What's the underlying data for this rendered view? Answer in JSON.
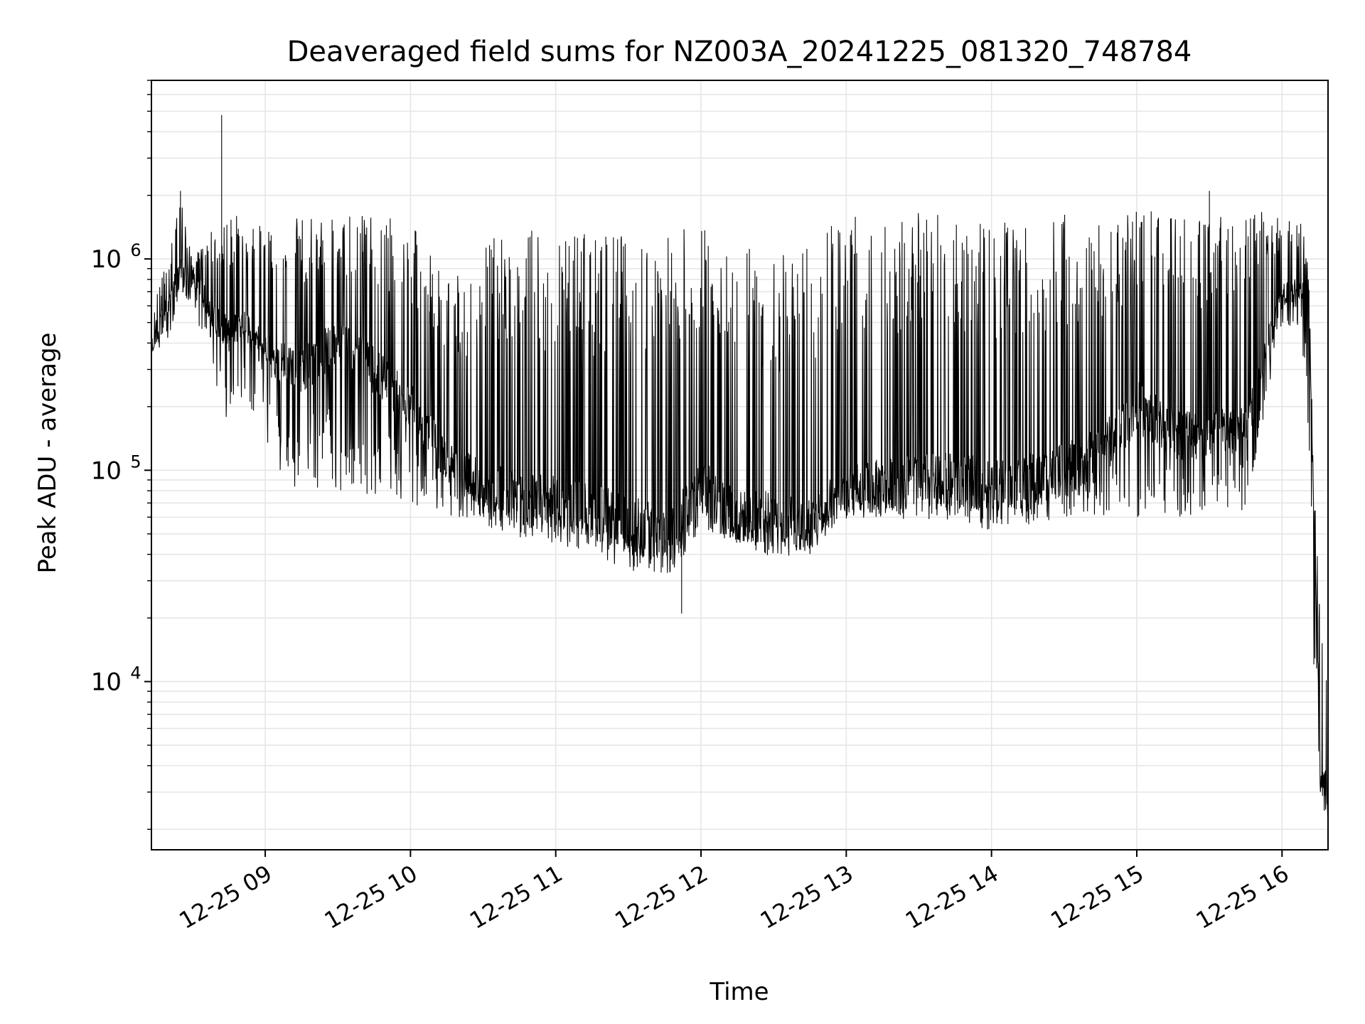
{
  "chart_data": {
    "type": "line",
    "title": "Deaveraged field sums for NZ003A_20241225_081320_748784",
    "xlabel": "Time",
    "ylabel": "Peak ADU - average",
    "y_scale": "log",
    "x_range": [
      "2024-12-25 08:13",
      "2024-12-25 16:19"
    ],
    "ylim": [
      1600,
      7000000
    ],
    "x_ticks": [
      {
        "value": "2024-12-25 09:00",
        "label": "12-25 09"
      },
      {
        "value": "2024-12-25 10:00",
        "label": "12-25 10"
      },
      {
        "value": "2024-12-25 11:00",
        "label": "12-25 11"
      },
      {
        "value": "2024-12-25 12:00",
        "label": "12-25 12"
      },
      {
        "value": "2024-12-25 13:00",
        "label": "12-25 13"
      },
      {
        "value": "2024-12-25 14:00",
        "label": "12-25 14"
      },
      {
        "value": "2024-12-25 15:00",
        "label": "12-25 15"
      },
      {
        "value": "2024-12-25 16:00",
        "label": "12-25 16"
      }
    ],
    "y_ticks": [
      {
        "value": 10000,
        "base": "10",
        "exp": "4"
      },
      {
        "value": 100000,
        "base": "10",
        "exp": "5"
      },
      {
        "value": 1000000,
        "base": "10",
        "exp": "6"
      }
    ],
    "grid": true,
    "line_color": "#000000",
    "series": [
      {
        "x": [
          "2024-12-25 08:13",
          "2024-12-25 08:20",
          "2024-12-25 08:25",
          "2024-12-25 08:30",
          "2024-12-25 08:35",
          "2024-12-25 08:40",
          "2024-12-25 08:45",
          "2024-12-25 08:50",
          "2024-12-25 09:00",
          "2024-12-25 09:15",
          "2024-12-25 09:30",
          "2024-12-25 09:45",
          "2024-12-25 10:00",
          "2024-12-25 10:15",
          "2024-12-25 10:30",
          "2024-12-25 10:45",
          "2024-12-25 11:00",
          "2024-12-25 11:15",
          "2024-12-25 11:30",
          "2024-12-25 11:45",
          "2024-12-25 12:00",
          "2024-12-25 12:15",
          "2024-12-25 12:30",
          "2024-12-25 12:45",
          "2024-12-25 13:00",
          "2024-12-25 13:15",
          "2024-12-25 13:30",
          "2024-12-25 13:45",
          "2024-12-25 14:00",
          "2024-12-25 14:15",
          "2024-12-25 14:30",
          "2024-12-25 14:45",
          "2024-12-25 15:00",
          "2024-12-25 15:15",
          "2024-12-25 15:30",
          "2024-12-25 15:45",
          "2024-12-25 16:00",
          "2024-12-25 16:08",
          "2024-12-25 16:11",
          "2024-12-25 16:13",
          "2024-12-25 16:16",
          "2024-12-25 16:19"
        ],
        "median": [
          400000,
          600000,
          900000,
          800000,
          650000,
          500000,
          450000,
          500000,
          350000,
          300000,
          400000,
          300000,
          200000,
          110000,
          85000,
          75000,
          70000,
          65000,
          55000,
          50000,
          85000,
          60000,
          60000,
          55000,
          80000,
          85000,
          90000,
          90000,
          85000,
          90000,
          100000,
          120000,
          200000,
          150000,
          150000,
          160000,
          700000,
          700000,
          650000,
          70000,
          3500,
          3000
        ],
        "low": [
          350000,
          400000,
          700000,
          600000,
          400000,
          250000,
          150000,
          200000,
          100000,
          80000,
          80000,
          75000,
          70000,
          60000,
          55000,
          48000,
          45000,
          40000,
          33000,
          30000,
          50000,
          45000,
          38000,
          40000,
          58000,
          60000,
          58000,
          55000,
          52000,
          55000,
          60000,
          60000,
          60000,
          60000,
          60000,
          60000,
          500000,
          450000,
          150000,
          12000,
          2500,
          2200
        ],
        "high": [
          600000,
          1000000,
          2000000,
          1000000,
          1200000,
          1500000,
          1700000,
          1600000,
          1400000,
          1600000,
          1600000,
          1600000,
          1500000,
          800000,
          1200000,
          1400000,
          1400000,
          1350000,
          1300000,
          1300000,
          1500000,
          1300000,
          1000000,
          1300000,
          1650000,
          1650000,
          1650000,
          1650000,
          1500000,
          1600000,
          1650000,
          1650000,
          1700000,
          1700000,
          1700000,
          1600000,
          1800000,
          1600000,
          900000,
          100000,
          20000,
          25000
        ],
        "spikes": [
          {
            "x": "2024-12-25 08:42",
            "y": 4800000
          },
          {
            "x": "2024-12-25 08:25",
            "y": 2100000
          },
          {
            "x": "2024-12-25 15:30",
            "y": 2100000
          },
          {
            "x": "2024-12-25 11:52",
            "y": 21000
          }
        ]
      }
    ]
  }
}
